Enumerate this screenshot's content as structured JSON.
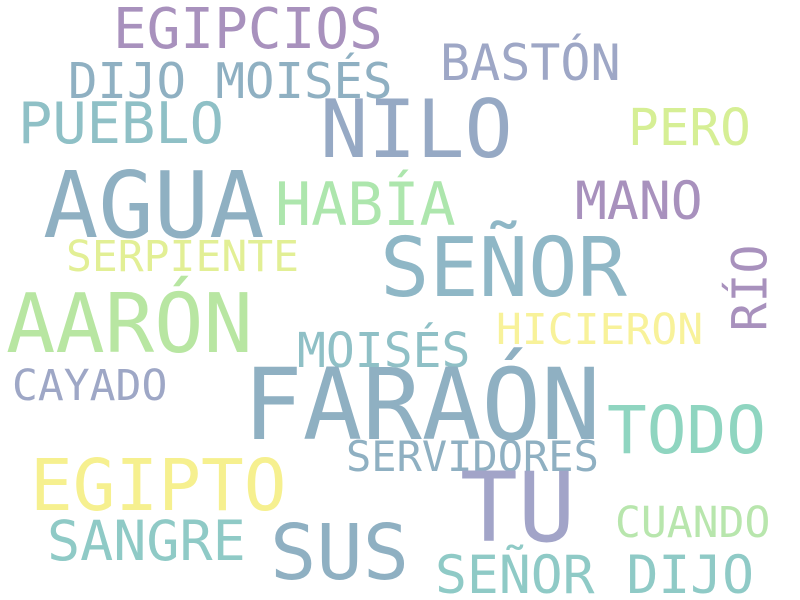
{
  "words": {
    "faraon": {
      "text": "FARAÓN",
      "color": "#8fb0c2"
    },
    "agua": {
      "text": "AGUA",
      "color": "#8fb0c2"
    },
    "nilo": {
      "text": "NILO",
      "color": "#96a9c4"
    },
    "senor": {
      "text": "SEÑOR",
      "color": "#8fb7c6"
    },
    "aaron": {
      "text": "AARÓN",
      "color": "#b8e6a2"
    },
    "tu": {
      "text": "TU",
      "color": "#a2a4c8"
    },
    "egipto": {
      "text": "EGIPTO",
      "color": "#f6f08f"
    },
    "sus": {
      "text": "SUS",
      "color": "#8fb0c2"
    },
    "todo": {
      "text": "TODO",
      "color": "#8fd5c0"
    },
    "egipcios": {
      "text": "EGIPCIOS",
      "color": "#a891bd"
    },
    "habia": {
      "text": "HABÍA",
      "color": "#ade6ad"
    },
    "mano": {
      "text": "MANO",
      "color": "#a891bd"
    },
    "sangre": {
      "text": "SANGRE",
      "color": "#8fcac6"
    },
    "pueblo": {
      "text": "PUEBLO",
      "color": "#8fc0c6"
    },
    "baston": {
      "text": "BASTÓN",
      "color": "#9ea7c6"
    },
    "pero": {
      "text": "PERO",
      "color": "#d6ef95"
    },
    "dijo_moises": {
      "text": "DIJO MOISÉS",
      "color": "#8fb0c2"
    },
    "rio": {
      "text": "RÍO",
      "color": "#a891bd"
    },
    "senor_dijo": {
      "text": "SEÑOR DIJO",
      "color": "#8fcac6"
    },
    "serpiente": {
      "text": "SERPIENTE",
      "color": "#e2ef95"
    },
    "hicieron": {
      "text": "HICIERON",
      "color": "#f8f29a"
    },
    "moises": {
      "text": "MOISÉS",
      "color": "#8fc0c6"
    },
    "cayado": {
      "text": "CAYADO",
      "color": "#9ea7c6"
    },
    "servidores": {
      "text": "SERVIDORES",
      "color": "#8fb0c2"
    },
    "cuando": {
      "text": "CUANDO",
      "color": "#b8e6ad"
    }
  }
}
